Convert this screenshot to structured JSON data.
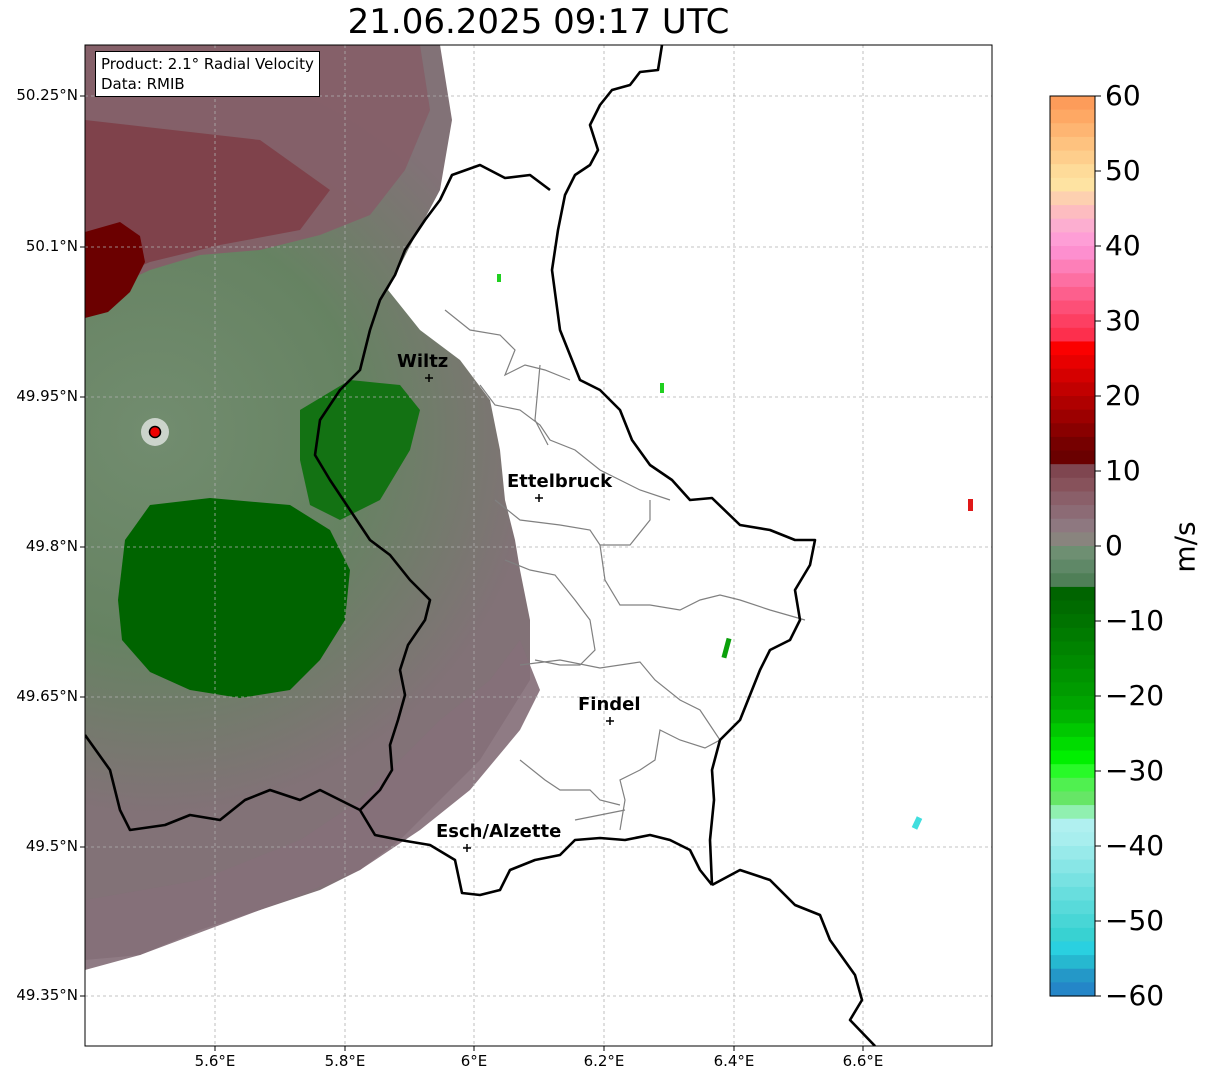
{
  "title": "21.06.2025 09:17 UTC",
  "info": {
    "product_line": "Product: 2.1° Radial Velocity",
    "data_line": "Data: RMIB"
  },
  "axes": {
    "lat_labels": [
      "50.25°N",
      "50.1°N",
      "49.95°N",
      "49.8°N",
      "49.65°N",
      "49.5°N",
      "49.35°N"
    ],
    "lon_labels": [
      "5.6°E",
      "5.8°E",
      "6°E",
      "6.2°E",
      "6.4°E",
      "6.6°E"
    ]
  },
  "cities": [
    {
      "name": "Wiltz"
    },
    {
      "name": "Ettelbruck"
    },
    {
      "name": "Findel"
    },
    {
      "name": "Esch/Alzette"
    }
  ],
  "colorbar": {
    "unit": "m/s",
    "ticks": [
      "60",
      "50",
      "40",
      "30",
      "20",
      "10",
      "0",
      "−10",
      "−20",
      "−30",
      "−40",
      "−50",
      "−60"
    ],
    "range": [
      -60,
      60
    ],
    "colors_top_to_bottom": [
      "#fd9c5a",
      "#fea864",
      "#feb572",
      "#fec27f",
      "#fece8c",
      "#fedb99",
      "#fee3a2",
      "#fdd0b0",
      "#fdbcc0",
      "#fcaed0",
      "#fe9ed6",
      "#fd8fcf",
      "#fd7fb8",
      "#fd6fa2",
      "#fd5f8d",
      "#fd4f77",
      "#fd3f62",
      "#fd2f4d",
      "#fb0000",
      "#e80000",
      "#d50000",
      "#c20000",
      "#af0000",
      "#9c0000",
      "#890000",
      "#760000",
      "#6a0000",
      "#7f4650",
      "#87525b",
      "#8a5f69",
      "#8c6b75",
      "#8e7880",
      "#89847e",
      "#6e8f72",
      "#5f8867",
      "#4f7f57",
      "#006400",
      "#006b00",
      "#007300",
      "#007b00",
      "#008300",
      "#008b00",
      "#009300",
      "#009b00",
      "#00a500",
      "#00b400",
      "#00c800",
      "#00dc00",
      "#00f000",
      "#28fa28",
      "#50f050",
      "#66e666",
      "#90f0b0",
      "#b0f0f0",
      "#a8eeee",
      "#98eaea",
      "#88e6e6",
      "#78e2e2",
      "#68dede",
      "#58dada",
      "#48d6d6",
      "#38d2d2",
      "#2ad0e0",
      "#26b8d0",
      "#2498c8",
      "#2486c8"
    ]
  }
}
